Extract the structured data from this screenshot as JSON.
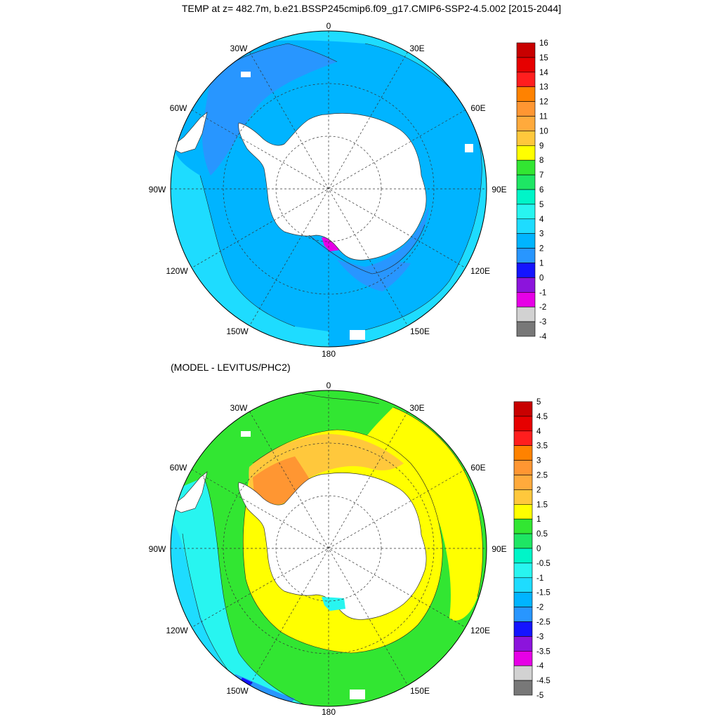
{
  "top_title": "TEMP at z= 482.7m, b.e21.BSSP245cmip6.f09_g17.CMIP6-SSP2-4.5.002 [2015-2044]",
  "bottom_title": "(MODEL - LEVITUS/PHC2)",
  "map_labels": {
    "lon0": "0",
    "lon30e": "30E",
    "lon60e": "60E",
    "lon90e": "90E",
    "lon120e": "120E",
    "lon150e": "150E",
    "lon180": "180",
    "lon150w": "150W",
    "lon120w": "120W",
    "lon90w": "90W",
    "lon60w": "60W",
    "lon30w": "30W"
  },
  "top_colorbar": {
    "labels": [
      "16",
      "15",
      "14",
      "13",
      "12",
      "11",
      "10",
      "9",
      "8",
      "7",
      "6",
      "5",
      "4",
      "3",
      "2",
      "1",
      "0",
      "-1",
      "-2",
      "-3",
      "-4"
    ],
    "colors": [
      "#c80000",
      "#e60000",
      "#ff1e1e",
      "#ff8200",
      "#ff9632",
      "#ffaa3c",
      "#ffc83c",
      "#ffff00",
      "#32e632",
      "#1ee664",
      "#00f5c8",
      "#28f5f0",
      "#1edcff",
      "#00b4ff",
      "#2896ff",
      "#1414ff",
      "#8c14dc",
      "#e600e6",
      "#d2d2d2",
      "#787878"
    ]
  },
  "bottom_colorbar": {
    "labels": [
      "5",
      "4.5",
      "4",
      "3.5",
      "3",
      "2.5",
      "2",
      "1.5",
      "1",
      "0.5",
      "0",
      "-0.5",
      "-1",
      "-1.5",
      "-2",
      "-2.5",
      "-3",
      "-3.5",
      "-4",
      "-4.5",
      "-5"
    ],
    "colors": [
      "#c80000",
      "#e60000",
      "#ff1e1e",
      "#ff8200",
      "#ff9632",
      "#ffaa3c",
      "#ffc83c",
      "#ffff00",
      "#32e632",
      "#1ee664",
      "#00f5c8",
      "#28f5f0",
      "#1edcff",
      "#00b4ff",
      "#2896ff",
      "#1414ff",
      "#8c14dc",
      "#e600e6",
      "#d2d2d2",
      "#787878"
    ]
  },
  "colors": {
    "land": "#ffffff",
    "top_ocean_main": "#00b4ff",
    "top_ocean_north": "#1edcff",
    "top_ocean_south": "#2896ff",
    "top_shelf_cold": "#1414ff",
    "top_shelf_coldest": "#e600e6",
    "bottom_ocean_main": "#32e632",
    "bottom_ring_warm": "#ffff00",
    "bottom_ring_warmer": "#ffc83c",
    "bottom_shelf": "#ff9632",
    "bottom_cold_sw": "#28f5f0",
    "bottom_cold_edge": "#1edcff",
    "bottom_coldest": "#1414ff"
  }
}
